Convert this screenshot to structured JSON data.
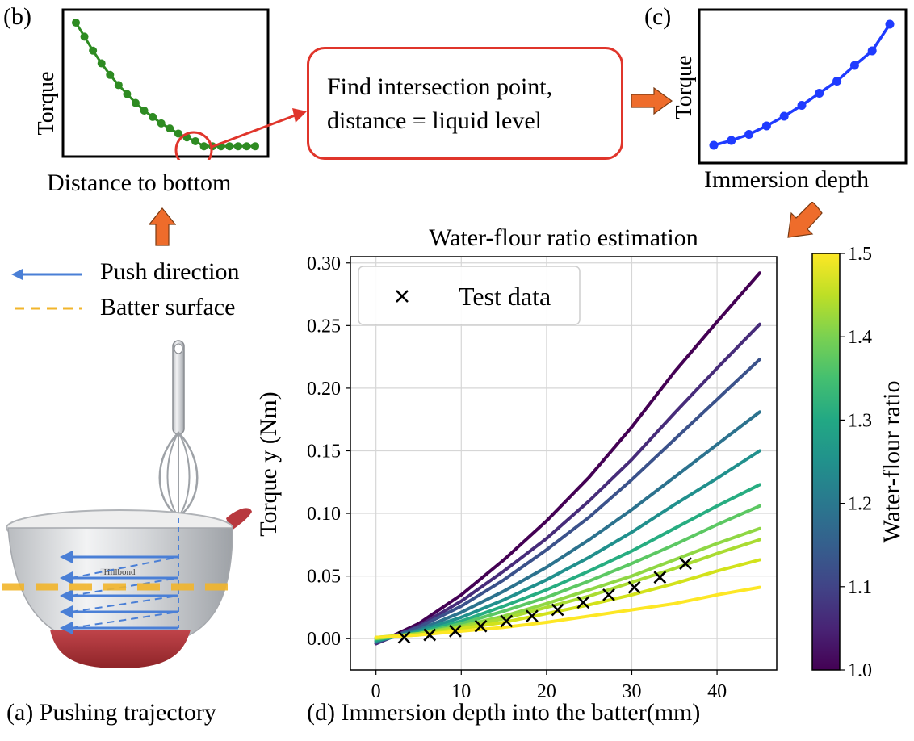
{
  "panel_b": {
    "tag": "(b)",
    "ylabel": "Torque",
    "xlabel": "Distance to bottom",
    "color": "#2e8b22",
    "highlight_color": "#e0352b"
  },
  "callout": {
    "line1": "Find intersection point,",
    "line2": "distance = liquid level"
  },
  "panel_c": {
    "tag": "(c)",
    "ylabel": "Torque",
    "xlabel": "Immersion depth",
    "color": "#1f3bff"
  },
  "panel_a": {
    "legend_push": "Push direction",
    "legend_surface": "Batter surface",
    "bowl_brand": "Hillbond",
    "caption": "(a)  Pushing trajectory",
    "push_color": "#4a7fd6",
    "surface_color": "#f2b52b",
    "arrow_color": "#ee6c2b"
  },
  "caption_d": "(d)   Immersion depth into the batter(mm)",
  "chart_data": {
    "type": "line",
    "title": "Water-flour ratio estimation",
    "xlabel": "",
    "ylabel": "Torque y (Nm)",
    "xlim": [
      -3,
      47
    ],
    "ylim": [
      -0.025,
      0.305
    ],
    "xticks": [
      0,
      10,
      20,
      30,
      40
    ],
    "yticks": [
      0.0,
      0.05,
      0.1,
      0.15,
      0.2,
      0.25,
      0.3
    ],
    "grid": true,
    "legend": {
      "placement": "top-left",
      "entries": [
        "Test data"
      ]
    },
    "colorbar": {
      "label": "Water-flour ratio",
      "min": 1.0,
      "max": 1.5,
      "ticks": [
        1.0,
        1.1,
        1.2,
        1.3,
        1.4,
        1.5
      ],
      "colormap": "viridis"
    },
    "x": [
      0,
      5,
      10,
      15,
      20,
      25,
      30,
      35,
      40,
      45
    ],
    "series": [
      {
        "ratio": 1.0,
        "color": "#440154",
        "values": [
          -0.004,
          0.012,
          0.035,
          0.063,
          0.094,
          0.129,
          0.169,
          0.213,
          0.253,
          0.292
        ]
      },
      {
        "ratio": 1.05,
        "color": "#472c7a",
        "values": [
          -0.004,
          0.01,
          0.03,
          0.054,
          0.08,
          0.11,
          0.143,
          0.18,
          0.216,
          0.251
        ]
      },
      {
        "ratio": 1.1,
        "color": "#3b528b",
        "values": [
          -0.003,
          0.009,
          0.026,
          0.047,
          0.071,
          0.097,
          0.127,
          0.159,
          0.191,
          0.223
        ]
      },
      {
        "ratio": 1.15,
        "color": "#2c728e",
        "values": [
          -0.002,
          0.007,
          0.021,
          0.038,
          0.057,
          0.079,
          0.103,
          0.129,
          0.155,
          0.181
        ]
      },
      {
        "ratio": 1.2,
        "color": "#21908d",
        "values": [
          -0.002,
          0.006,
          0.017,
          0.031,
          0.047,
          0.065,
          0.085,
          0.107,
          0.128,
          0.15
        ]
      },
      {
        "ratio": 1.25,
        "color": "#27ad81",
        "values": [
          -0.001,
          0.005,
          0.014,
          0.026,
          0.039,
          0.054,
          0.07,
          0.088,
          0.106,
          0.123
        ]
      },
      {
        "ratio": 1.3,
        "color": "#5cc863",
        "values": [
          0.0,
          0.004,
          0.012,
          0.022,
          0.033,
          0.046,
          0.06,
          0.075,
          0.091,
          0.106
        ]
      },
      {
        "ratio": 1.35,
        "color": "#8fd744",
        "values": [
          0.0,
          0.004,
          0.01,
          0.018,
          0.028,
          0.039,
          0.05,
          0.063,
          0.076,
          0.088
        ]
      },
      {
        "ratio": 1.4,
        "color": "#aadc32",
        "values": [
          0.001,
          0.004,
          0.009,
          0.016,
          0.025,
          0.034,
          0.045,
          0.056,
          0.068,
          0.079
        ]
      },
      {
        "ratio": 1.45,
        "color": "#d2e21b",
        "values": [
          0.001,
          0.003,
          0.008,
          0.013,
          0.02,
          0.027,
          0.035,
          0.044,
          0.054,
          0.063
        ]
      },
      {
        "ratio": 1.5,
        "color": "#fde725",
        "values": [
          0.001,
          0.003,
          0.006,
          0.009,
          0.013,
          0.018,
          0.023,
          0.028,
          0.035,
          0.041
        ]
      }
    ],
    "test_data": {
      "name": "Test data",
      "x": [
        3.3,
        6.3,
        9.3,
        12.3,
        15.3,
        18.3,
        21.3,
        24.3,
        27.3,
        30.3,
        33.3,
        36.3
      ],
      "y": [
        0.001,
        0.003,
        0.006,
        0.01,
        0.014,
        0.018,
        0.023,
        0.029,
        0.035,
        0.041,
        0.049,
        0.06
      ]
    }
  },
  "panel_b_data": {
    "x": [
      0,
      1,
      2,
      3,
      4,
      5,
      6,
      7,
      8,
      9,
      10,
      11,
      12,
      13,
      14,
      15,
      16,
      17,
      18,
      19,
      20,
      21
    ],
    "y": [
      1.0,
      0.89,
      0.78,
      0.68,
      0.59,
      0.51,
      0.44,
      0.37,
      0.31,
      0.26,
      0.21,
      0.17,
      0.13,
      0.1,
      0.07,
      0.03,
      0.03,
      0.03,
      0.03,
      0.03,
      0.03,
      0.03
    ]
  },
  "panel_c_data": {
    "x": [
      0,
      1,
      2,
      3,
      4,
      5,
      6,
      7,
      8,
      9,
      10
    ],
    "y": [
      0.0,
      0.04,
      0.09,
      0.16,
      0.24,
      0.33,
      0.43,
      0.53,
      0.66,
      0.78,
      1.0
    ]
  }
}
